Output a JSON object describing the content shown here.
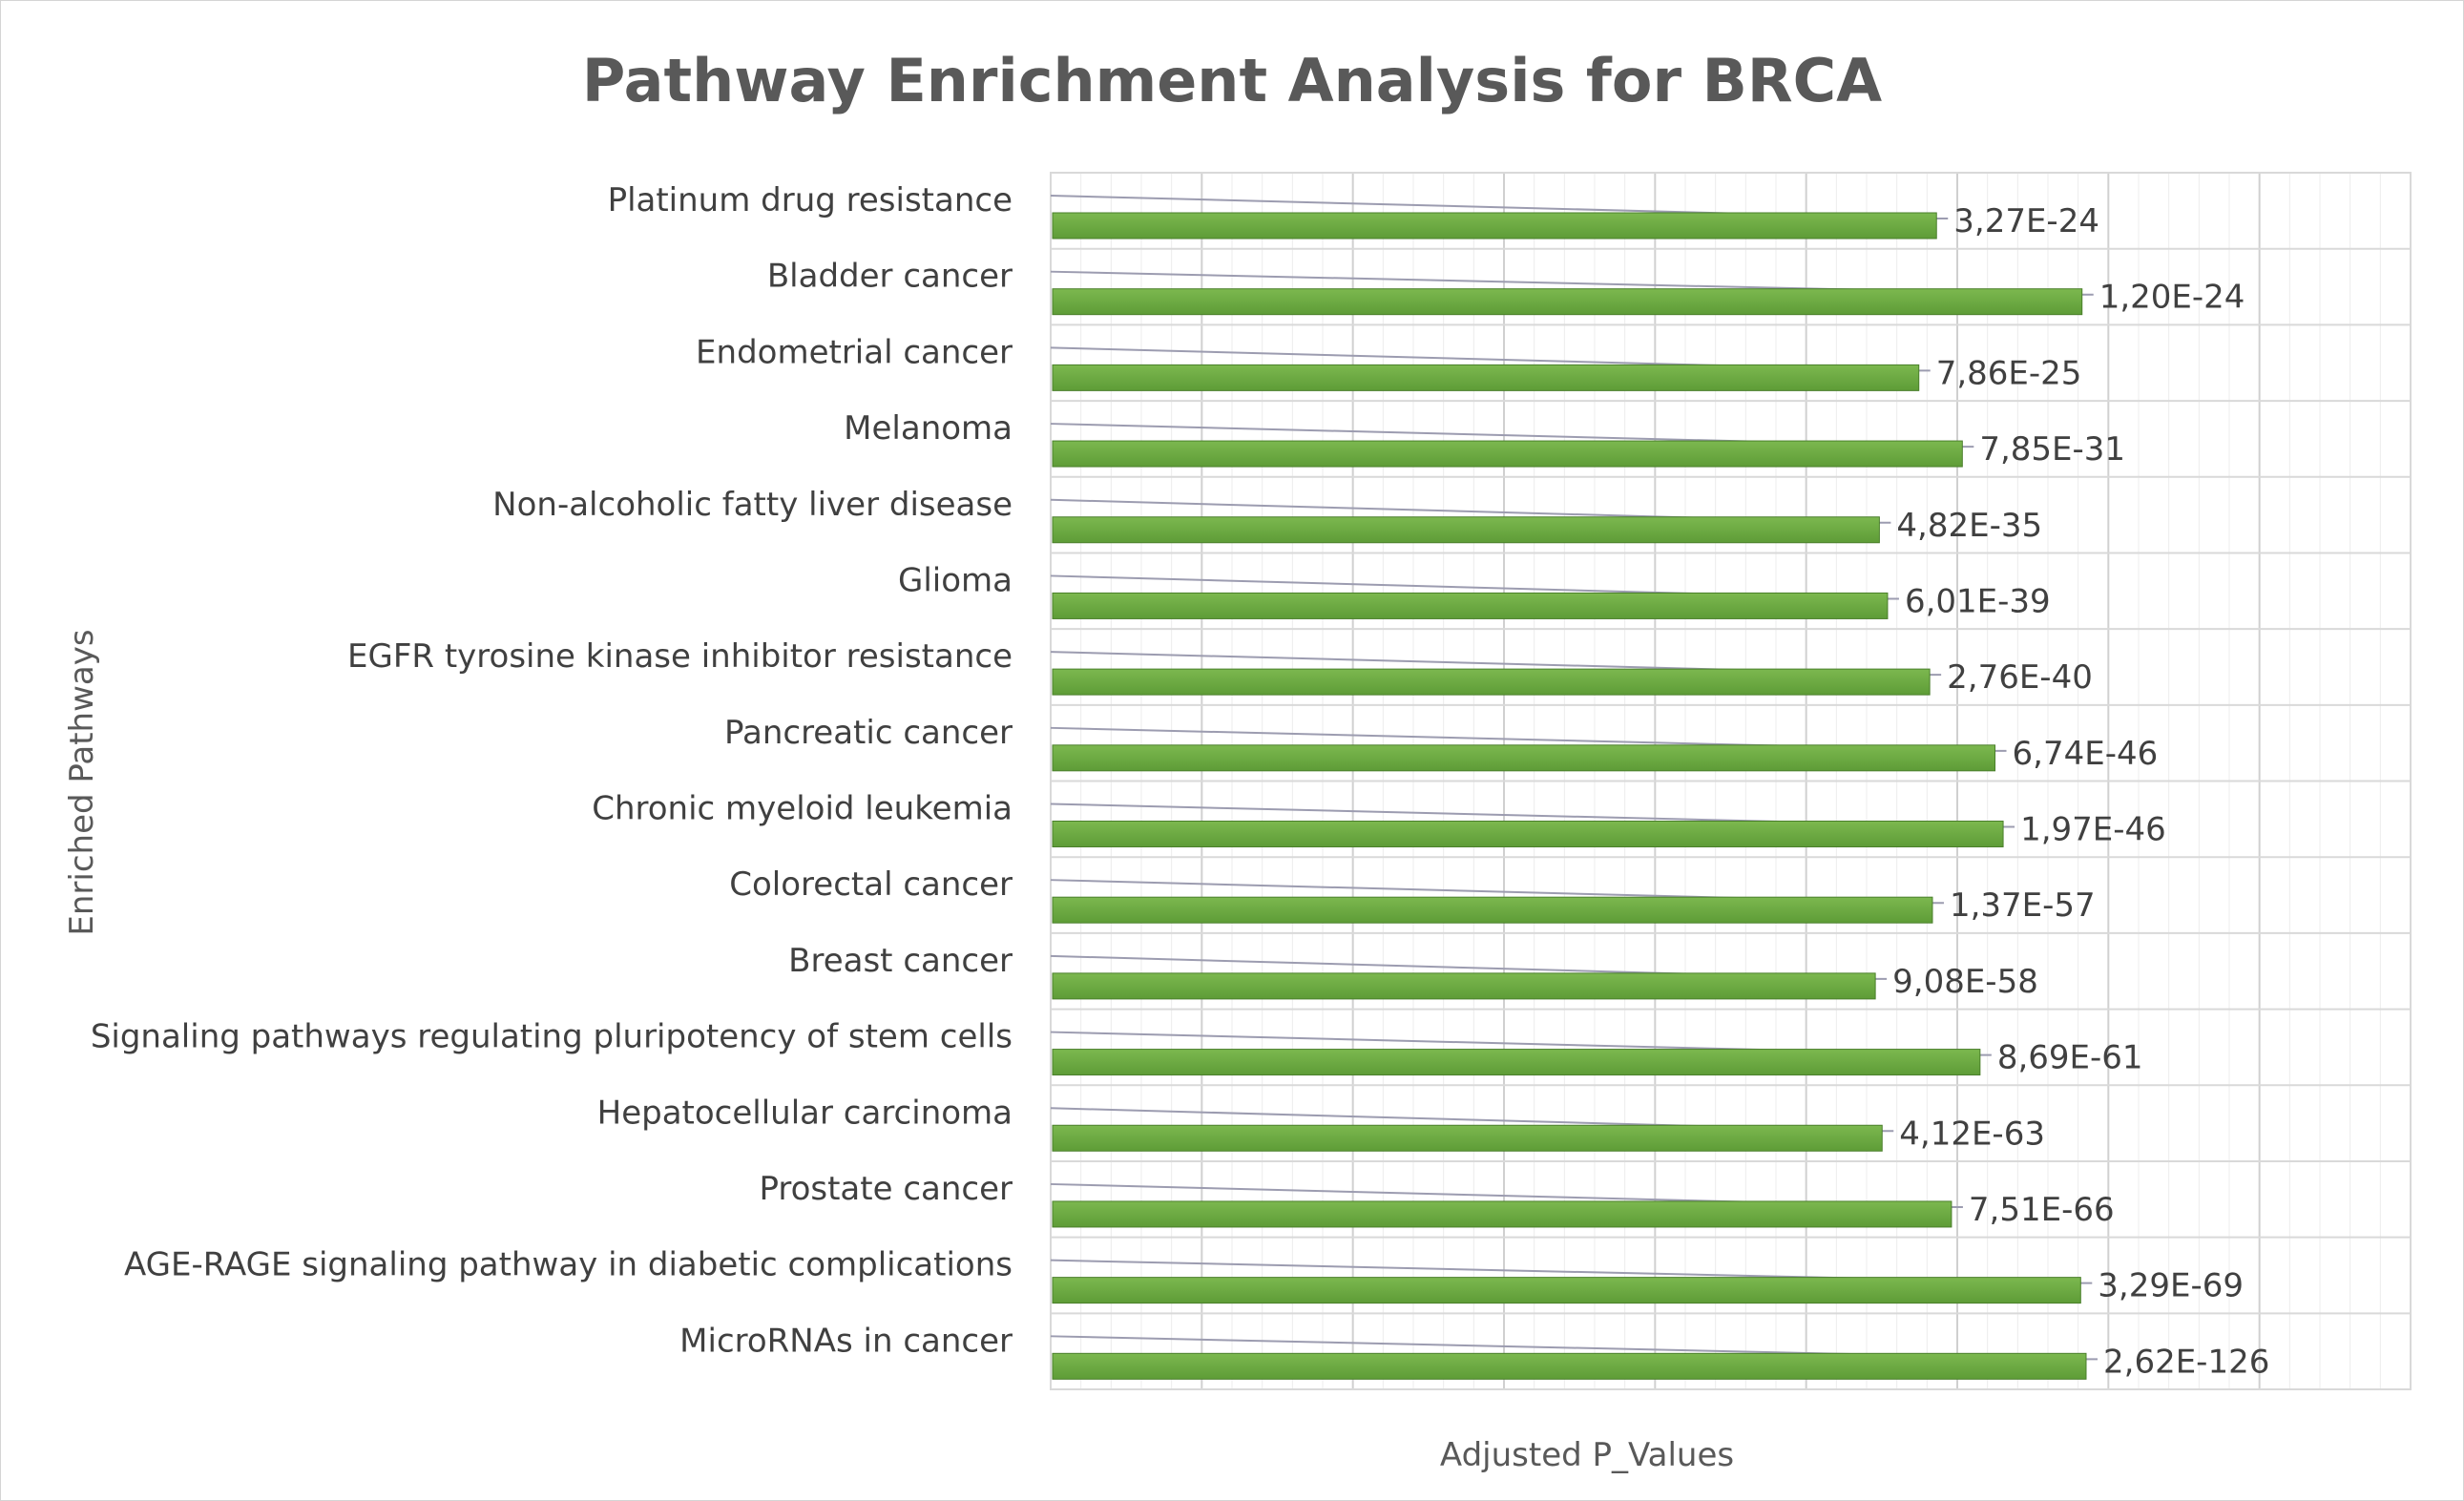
{
  "chart_data": {
    "type": "bar",
    "orientation": "horizontal",
    "title": "Pathway Enrichment Analysis for BRCA",
    "xlabel": "Adjusted P_Values",
    "ylabel": "Enriched Pathways",
    "categories": [
      "Platinum drug resistance",
      "Bladder cancer",
      "Endometrial cancer",
      "Melanoma",
      "Non-alcoholic fatty liver disease",
      "Glioma",
      "EGFR tyrosine kinase inhibitor resistance",
      "Pancreatic cancer",
      "Chronic myeloid leukemia",
      "Colorectal cancer",
      "Breast cancer",
      "Signaling pathways regulating pluripotency of stem cells",
      "Hepatocellular carcinoma",
      "Prostate cancer",
      "AGE-RAGE signaling pathway in diabetic complications",
      "MicroRNAs in cancer"
    ],
    "values": [
      0.65,
      0.757,
      0.637,
      0.669,
      0.608,
      0.614,
      0.645,
      0.693,
      0.699,
      0.647,
      0.605,
      0.682,
      0.61,
      0.661,
      0.756,
      0.76
    ],
    "data_labels": [
      "3,27E-24",
      "1,20E-24",
      "7,86E-25",
      "7,85E-31",
      "4,82E-35",
      "6,01E-39",
      "2,76E-40",
      "6,74E-46",
      "1,97E-46",
      "1,37E-57",
      "9,08E-58",
      "8,69E-61",
      "4,12E-63",
      "7,51E-66",
      "3,29E-69",
      "2,62E-126"
    ],
    "value_note": "bar lengths as fraction of the x-axis range; the axis has no tick labels",
    "xlim": [
      0,
      1
    ],
    "grid": true,
    "legend": "none",
    "colors": {
      "bar": "#5e9c37",
      "bar_top": "#7cb84f",
      "gridline": "#d9d9d9",
      "leader": "#9c9cb0"
    }
  }
}
